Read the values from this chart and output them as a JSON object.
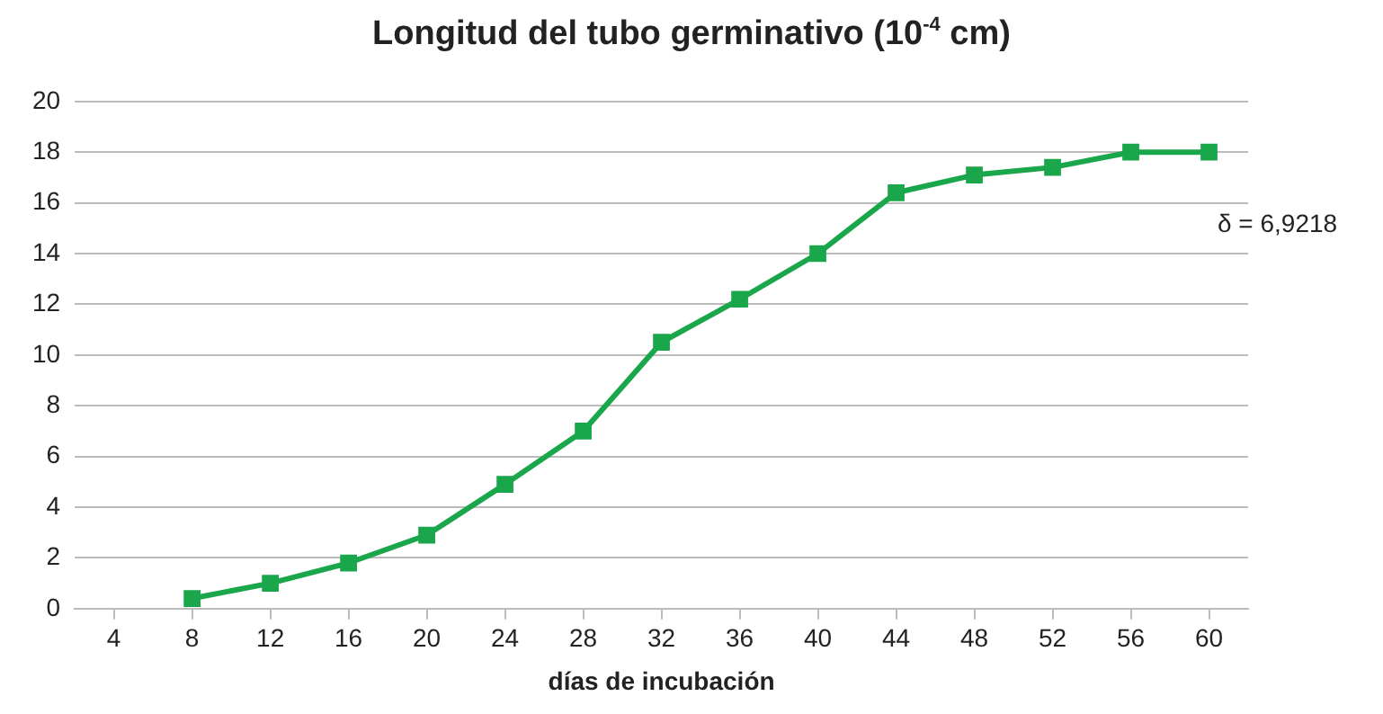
{
  "chart_data": {
    "type": "line",
    "title": "Longitud del tubo germinativo (10$^{-4}$ cm)",
    "xlabel": "días de incubación",
    "x": [
      8,
      12,
      16,
      20,
      24,
      28,
      32,
      36,
      40,
      44,
      48,
      52,
      56,
      60
    ],
    "series": [
      {
        "color": "#1aa64b",
        "values": [
          0.4,
          1.0,
          1.8,
          2.9,
          4.9,
          7.0,
          10.5,
          12.2,
          14.0,
          16.4,
          17.1,
          17.4,
          18.0,
          18.0
        ]
      }
    ],
    "xlim": [
      2,
      62
    ],
    "xticks": [
      4,
      8,
      12,
      16,
      20,
      24,
      28,
      32,
      36,
      40,
      44,
      48,
      52,
      56,
      60
    ],
    "ylim": [
      0,
      20
    ],
    "yticks": [
      0,
      2,
      4,
      6,
      8,
      10,
      12,
      14,
      16,
      18,
      20
    ],
    "grid": "y",
    "legend": false,
    "marker": "square",
    "line_style": "solid",
    "annotations": [
      "δ = 6,9218"
    ]
  }
}
